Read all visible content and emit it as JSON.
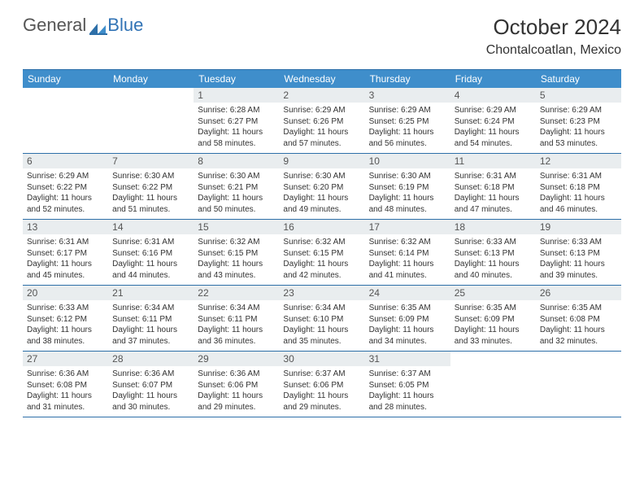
{
  "brand": {
    "part1": "General",
    "part2": "Blue"
  },
  "title": "October 2024",
  "location": "Chontalcoatlan, Mexico",
  "colors": {
    "header_bg": "#3f8ecb",
    "header_text": "#ffffff",
    "daynum_bg": "#e9edef",
    "border": "#2d6fa8",
    "logo_blue": "#3173b5",
    "text": "#333333"
  },
  "dow": [
    "Sunday",
    "Monday",
    "Tuesday",
    "Wednesday",
    "Thursday",
    "Friday",
    "Saturday"
  ],
  "sunrise_label": "Sunrise:",
  "sunset_label": "Sunset:",
  "daylight_label": "Daylight:",
  "weeks": [
    [
      null,
      null,
      {
        "n": "1",
        "sunrise": "6:28 AM",
        "sunset": "6:27 PM",
        "daylight": "11 hours and 58 minutes."
      },
      {
        "n": "2",
        "sunrise": "6:29 AM",
        "sunset": "6:26 PM",
        "daylight": "11 hours and 57 minutes."
      },
      {
        "n": "3",
        "sunrise": "6:29 AM",
        "sunset": "6:25 PM",
        "daylight": "11 hours and 56 minutes."
      },
      {
        "n": "4",
        "sunrise": "6:29 AM",
        "sunset": "6:24 PM",
        "daylight": "11 hours and 54 minutes."
      },
      {
        "n": "5",
        "sunrise": "6:29 AM",
        "sunset": "6:23 PM",
        "daylight": "11 hours and 53 minutes."
      }
    ],
    [
      {
        "n": "6",
        "sunrise": "6:29 AM",
        "sunset": "6:22 PM",
        "daylight": "11 hours and 52 minutes."
      },
      {
        "n": "7",
        "sunrise": "6:30 AM",
        "sunset": "6:22 PM",
        "daylight": "11 hours and 51 minutes."
      },
      {
        "n": "8",
        "sunrise": "6:30 AM",
        "sunset": "6:21 PM",
        "daylight": "11 hours and 50 minutes."
      },
      {
        "n": "9",
        "sunrise": "6:30 AM",
        "sunset": "6:20 PM",
        "daylight": "11 hours and 49 minutes."
      },
      {
        "n": "10",
        "sunrise": "6:30 AM",
        "sunset": "6:19 PM",
        "daylight": "11 hours and 48 minutes."
      },
      {
        "n": "11",
        "sunrise": "6:31 AM",
        "sunset": "6:18 PM",
        "daylight": "11 hours and 47 minutes."
      },
      {
        "n": "12",
        "sunrise": "6:31 AM",
        "sunset": "6:18 PM",
        "daylight": "11 hours and 46 minutes."
      }
    ],
    [
      {
        "n": "13",
        "sunrise": "6:31 AM",
        "sunset": "6:17 PM",
        "daylight": "11 hours and 45 minutes."
      },
      {
        "n": "14",
        "sunrise": "6:31 AM",
        "sunset": "6:16 PM",
        "daylight": "11 hours and 44 minutes."
      },
      {
        "n": "15",
        "sunrise": "6:32 AM",
        "sunset": "6:15 PM",
        "daylight": "11 hours and 43 minutes."
      },
      {
        "n": "16",
        "sunrise": "6:32 AM",
        "sunset": "6:15 PM",
        "daylight": "11 hours and 42 minutes."
      },
      {
        "n": "17",
        "sunrise": "6:32 AM",
        "sunset": "6:14 PM",
        "daylight": "11 hours and 41 minutes."
      },
      {
        "n": "18",
        "sunrise": "6:33 AM",
        "sunset": "6:13 PM",
        "daylight": "11 hours and 40 minutes."
      },
      {
        "n": "19",
        "sunrise": "6:33 AM",
        "sunset": "6:13 PM",
        "daylight": "11 hours and 39 minutes."
      }
    ],
    [
      {
        "n": "20",
        "sunrise": "6:33 AM",
        "sunset": "6:12 PM",
        "daylight": "11 hours and 38 minutes."
      },
      {
        "n": "21",
        "sunrise": "6:34 AM",
        "sunset": "6:11 PM",
        "daylight": "11 hours and 37 minutes."
      },
      {
        "n": "22",
        "sunrise": "6:34 AM",
        "sunset": "6:11 PM",
        "daylight": "11 hours and 36 minutes."
      },
      {
        "n": "23",
        "sunrise": "6:34 AM",
        "sunset": "6:10 PM",
        "daylight": "11 hours and 35 minutes."
      },
      {
        "n": "24",
        "sunrise": "6:35 AM",
        "sunset": "6:09 PM",
        "daylight": "11 hours and 34 minutes."
      },
      {
        "n": "25",
        "sunrise": "6:35 AM",
        "sunset": "6:09 PM",
        "daylight": "11 hours and 33 minutes."
      },
      {
        "n": "26",
        "sunrise": "6:35 AM",
        "sunset": "6:08 PM",
        "daylight": "11 hours and 32 minutes."
      }
    ],
    [
      {
        "n": "27",
        "sunrise": "6:36 AM",
        "sunset": "6:08 PM",
        "daylight": "11 hours and 31 minutes."
      },
      {
        "n": "28",
        "sunrise": "6:36 AM",
        "sunset": "6:07 PM",
        "daylight": "11 hours and 30 minutes."
      },
      {
        "n": "29",
        "sunrise": "6:36 AM",
        "sunset": "6:06 PM",
        "daylight": "11 hours and 29 minutes."
      },
      {
        "n": "30",
        "sunrise": "6:37 AM",
        "sunset": "6:06 PM",
        "daylight": "11 hours and 29 minutes."
      },
      {
        "n": "31",
        "sunrise": "6:37 AM",
        "sunset": "6:05 PM",
        "daylight": "11 hours and 28 minutes."
      },
      null,
      null
    ]
  ]
}
